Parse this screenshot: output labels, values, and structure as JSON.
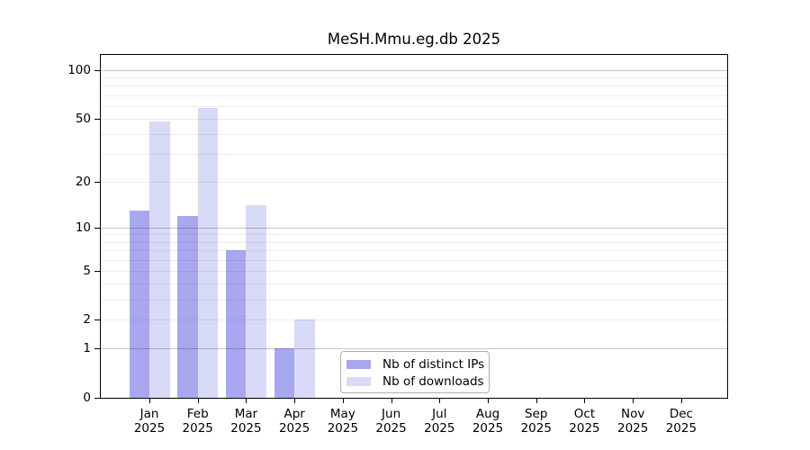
{
  "chart_data": {
    "type": "bar",
    "title": "MeSH.Mmu.eg.db 2025",
    "categories": [
      "Jan",
      "Feb",
      "Mar",
      "Apr",
      "May",
      "Jun",
      "Jul",
      "Aug",
      "Sep",
      "Oct",
      "Nov",
      "Dec"
    ],
    "year": "2025",
    "series": [
      {
        "name": "Nb of distinct IPs",
        "color": "#a8a8f0",
        "values": [
          13,
          12,
          7,
          1,
          0,
          0,
          0,
          0,
          0,
          0,
          0,
          0
        ]
      },
      {
        "name": "Nb of downloads",
        "color": "#d9d9f8",
        "values": [
          48,
          58,
          14,
          2,
          0,
          0,
          0,
          0,
          0,
          0,
          0,
          0
        ]
      }
    ],
    "y_axis": {
      "scale": "log1p",
      "ticks": [
        0,
        1,
        2,
        5,
        10,
        20,
        50,
        100
      ],
      "major_gridlines": [
        1,
        10,
        100
      ],
      "minor_gridlines": [
        2,
        3,
        4,
        5,
        6,
        7,
        8,
        9,
        20,
        30,
        40,
        50,
        60,
        70,
        80,
        90
      ],
      "ylim": [
        0,
        128
      ]
    },
    "x_axis": {
      "tick_label_line2": "2025"
    },
    "legend": {
      "position": "bottom-center"
    },
    "grid": "horizontal",
    "colors": {
      "bar_dark": "#a8a8f0",
      "bar_light": "#d9d9f8",
      "axis": "#000000"
    }
  }
}
